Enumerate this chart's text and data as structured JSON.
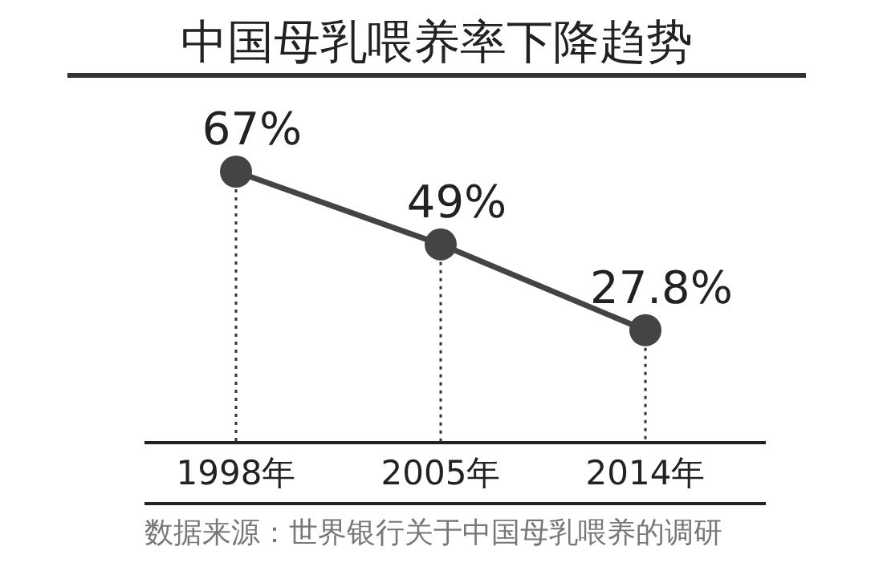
{
  "chart_data": {
    "type": "line",
    "title": "中国母乳喂养率下降趋势",
    "categories": [
      "1998年",
      "2005年",
      "2014年"
    ],
    "values": [
      67,
      49,
      27.8
    ],
    "value_labels": [
      "67%",
      "49%",
      "27.8%"
    ],
    "color": "#444444",
    "marker": "circle",
    "line_style": "solid",
    "annotations": [
      "数据来源：世界银行关于中国母乳喂养的调研"
    ]
  }
}
